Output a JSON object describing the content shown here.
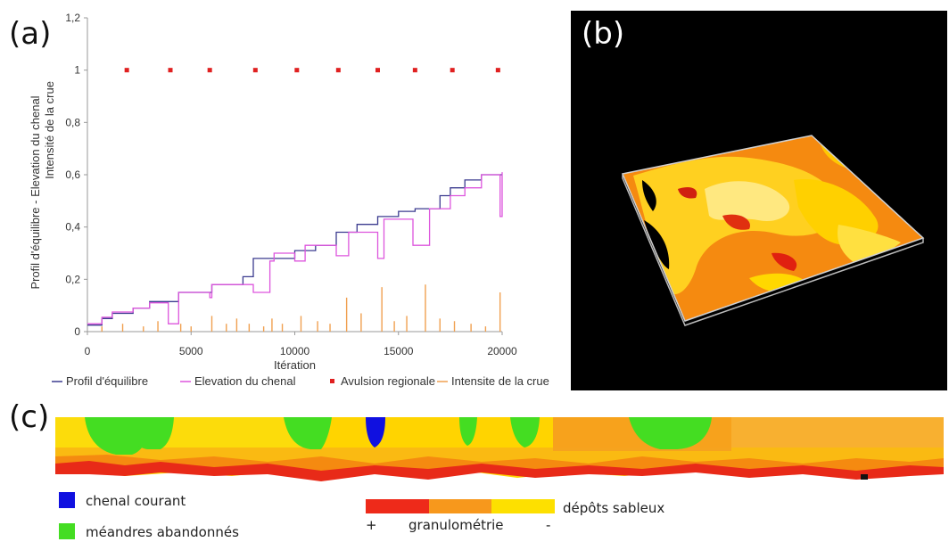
{
  "labels": {
    "a": "(a)",
    "b": "(b)",
    "c": "(c)"
  },
  "chart_data": {
    "type": "line",
    "title": "",
    "xlabel": "Itération",
    "ylabel_line1": "Profil d'équilibre - Elevation du chenal",
    "ylabel_line2": "Intensité de la crue",
    "xlim": [
      0,
      20000
    ],
    "ylim": [
      0,
      1.2
    ],
    "x_ticks": [
      "0",
      "5000",
      "10000",
      "15000",
      "20000"
    ],
    "y_ticks": [
      "0",
      "0,2",
      "0,4",
      "0,6",
      "0,8",
      "1",
      "1,2"
    ],
    "legend_position": "bottom",
    "series": [
      {
        "name": "Profil d'équilibre",
        "color": "#3b3b8f",
        "points": [
          [
            0,
            0.025
          ],
          [
            700,
            0.025
          ],
          [
            700,
            0.05
          ],
          [
            1200,
            0.05
          ],
          [
            1200,
            0.07
          ],
          [
            2200,
            0.07
          ],
          [
            2200,
            0.09
          ],
          [
            3000,
            0.09
          ],
          [
            3000,
            0.115
          ],
          [
            4400,
            0.115
          ],
          [
            4400,
            0.15
          ],
          [
            6000,
            0.15
          ],
          [
            6000,
            0.18
          ],
          [
            7500,
            0.18
          ],
          [
            7500,
            0.21
          ],
          [
            8000,
            0.21
          ],
          [
            8000,
            0.28
          ],
          [
            10000,
            0.28
          ],
          [
            10000,
            0.31
          ],
          [
            11000,
            0.31
          ],
          [
            11000,
            0.33
          ],
          [
            12000,
            0.33
          ],
          [
            12000,
            0.38
          ],
          [
            13000,
            0.38
          ],
          [
            13000,
            0.41
          ],
          [
            14000,
            0.41
          ],
          [
            14000,
            0.44
          ],
          [
            15000,
            0.44
          ],
          [
            15000,
            0.46
          ],
          [
            15800,
            0.46
          ],
          [
            15800,
            0.47
          ],
          [
            17000,
            0.47
          ],
          [
            17000,
            0.52
          ],
          [
            17500,
            0.52
          ],
          [
            17500,
            0.55
          ],
          [
            18200,
            0.55
          ],
          [
            18200,
            0.58
          ],
          [
            19000,
            0.58
          ],
          [
            19000,
            0.6
          ],
          [
            20000,
            0.6
          ]
        ]
      },
      {
        "name": "Elevation du chenal",
        "color": "#dd55dd",
        "points": [
          [
            0,
            0.03
          ],
          [
            700,
            0.03
          ],
          [
            700,
            0.055
          ],
          [
            1200,
            0.055
          ],
          [
            1200,
            0.075
          ],
          [
            2200,
            0.075
          ],
          [
            2200,
            0.09
          ],
          [
            3000,
            0.09
          ],
          [
            3000,
            0.11
          ],
          [
            3900,
            0.11
          ],
          [
            3900,
            0.03
          ],
          [
            4400,
            0.03
          ],
          [
            4400,
            0.15
          ],
          [
            5900,
            0.15
          ],
          [
            5900,
            0.13
          ],
          [
            6000,
            0.13
          ],
          [
            6000,
            0.18
          ],
          [
            8000,
            0.18
          ],
          [
            8000,
            0.15
          ],
          [
            8800,
            0.15
          ],
          [
            8800,
            0.27
          ],
          [
            9000,
            0.27
          ],
          [
            9000,
            0.3
          ],
          [
            10000,
            0.3
          ],
          [
            10000,
            0.27
          ],
          [
            10500,
            0.27
          ],
          [
            10500,
            0.33
          ],
          [
            12000,
            0.33
          ],
          [
            12000,
            0.29
          ],
          [
            12600,
            0.29
          ],
          [
            12600,
            0.38
          ],
          [
            14000,
            0.38
          ],
          [
            14000,
            0.28
          ],
          [
            14300,
            0.28
          ],
          [
            14300,
            0.43
          ],
          [
            15700,
            0.43
          ],
          [
            15700,
            0.33
          ],
          [
            16500,
            0.33
          ],
          [
            16500,
            0.47
          ],
          [
            17500,
            0.47
          ],
          [
            17500,
            0.52
          ],
          [
            18200,
            0.52
          ],
          [
            18200,
            0.55
          ],
          [
            19000,
            0.55
          ],
          [
            19000,
            0.6
          ],
          [
            19900,
            0.6
          ],
          [
            19900,
            0.44
          ],
          [
            20000,
            0.44
          ],
          [
            20000,
            0.61
          ]
        ]
      },
      {
        "name": "Avulsion regionale",
        "color": "#e02020",
        "points": [
          [
            1900,
            1
          ],
          [
            4000,
            1
          ],
          [
            5900,
            1
          ],
          [
            8100,
            1
          ],
          [
            10100,
            1
          ],
          [
            12100,
            1
          ],
          [
            14000,
            1
          ],
          [
            15800,
            1
          ],
          [
            17600,
            1
          ],
          [
            19800,
            1
          ]
        ]
      },
      {
        "name": "Intensite de la crue",
        "color": "#f0a050",
        "spikes": [
          [
            700,
            0.02
          ],
          [
            1700,
            0.03
          ],
          [
            2700,
            0.02
          ],
          [
            3400,
            0.04
          ],
          [
            4500,
            0.03
          ],
          [
            5000,
            0.02
          ],
          [
            6000,
            0.06
          ],
          [
            6700,
            0.03
          ],
          [
            7200,
            0.05
          ],
          [
            7800,
            0.03
          ],
          [
            8500,
            0.02
          ],
          [
            8900,
            0.05
          ],
          [
            9400,
            0.03
          ],
          [
            10300,
            0.06
          ],
          [
            11100,
            0.04
          ],
          [
            11700,
            0.03
          ],
          [
            12500,
            0.13
          ],
          [
            13200,
            0.07
          ],
          [
            14200,
            0.17
          ],
          [
            14800,
            0.04
          ],
          [
            15400,
            0.06
          ],
          [
            16300,
            0.18
          ],
          [
            17000,
            0.05
          ],
          [
            17700,
            0.04
          ],
          [
            18500,
            0.03
          ],
          [
            19200,
            0.02
          ],
          [
            19900,
            0.15
          ]
        ]
      }
    ]
  },
  "legend_c": {
    "chenal": "chenal courant",
    "meandres": "méandres abandonnés",
    "depots": "dépôts sableux",
    "granulometrie": "granulométrie",
    "plus": "+",
    "minus": "-"
  },
  "colors": {
    "red": "#ee2a1a",
    "orange": "#f7981c",
    "yellow": "#fde000",
    "blue": "#1010e0",
    "green": "#44dd22"
  }
}
